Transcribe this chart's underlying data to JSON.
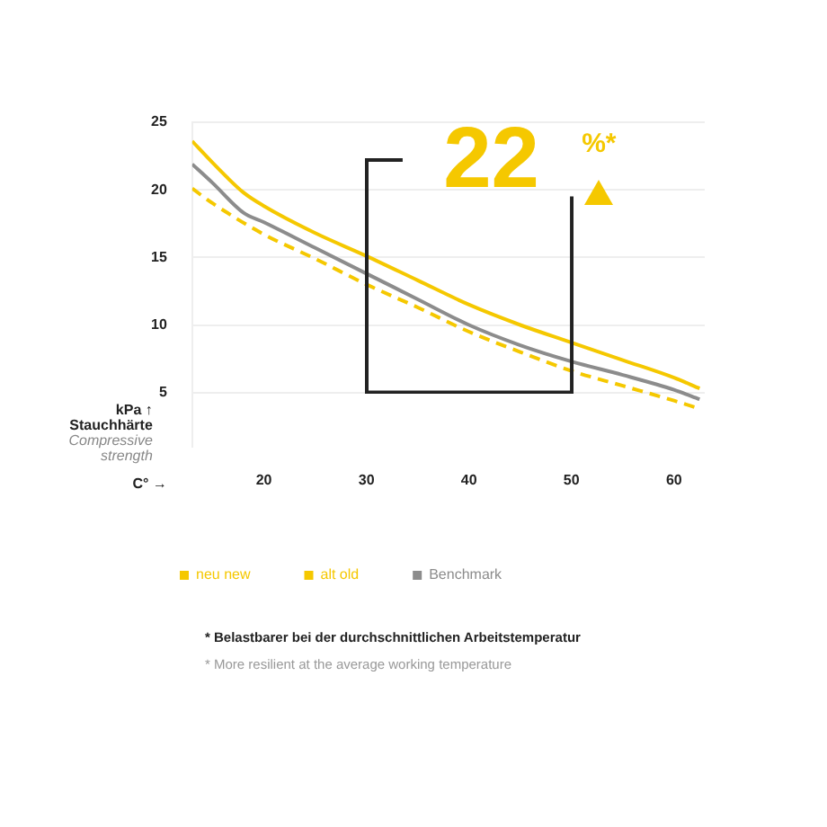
{
  "chart_data": {
    "type": "line",
    "xlabel": "C° →",
    "ylabel": "kPa ↑\nStauchhärte\nCompressive\nstrength",
    "xlim": [
      13,
      63
    ],
    "xticks": [
      20,
      30,
      40,
      50,
      60
    ],
    "ylim": [
      1,
      25
    ],
    "yticks": [
      5,
      10,
      15,
      20,
      25
    ],
    "grid": "y",
    "legend": "bottom",
    "marker": "none",
    "series": [
      {
        "name": "neu new",
        "color": "#f5c800",
        "line_style": "solid",
        "x": [
          13,
          15,
          18,
          20,
          25,
          30,
          35,
          40,
          45,
          50,
          55,
          60,
          62.5
        ],
        "values": [
          23.6,
          22,
          19.8,
          18.8,
          16.8,
          15.1,
          13.3,
          11.5,
          10,
          8.7,
          7.4,
          6.1,
          5.3
        ]
      },
      {
        "name": "alt old",
        "color": "#f5c800",
        "line_style": "dashed",
        "x": [
          13,
          15,
          20,
          25,
          30,
          35,
          40,
          45,
          50,
          55,
          60,
          62.5
        ],
        "values": [
          20.1,
          19,
          16.7,
          14.9,
          13,
          11.3,
          9.5,
          8,
          6.6,
          5.5,
          4.4,
          3.8
        ]
      },
      {
        "name": "Benchmark",
        "color": "#8c8c8c",
        "line_style": "solid",
        "x": [
          13,
          15,
          18,
          20,
          25,
          30,
          35,
          40,
          45,
          50,
          55,
          60,
          62.5
        ],
        "values": [
          21.9,
          20.5,
          18.3,
          17.6,
          15.7,
          13.8,
          11.9,
          10,
          8.5,
          7.3,
          6.3,
          5.2,
          4.5
        ]
      }
    ],
    "annotations": [
      "22",
      "%*",
      "* Belastbarer bei der durchschnittlichen Arbeitstemperatur",
      "* More resilient at the average working temperature"
    ]
  }
}
